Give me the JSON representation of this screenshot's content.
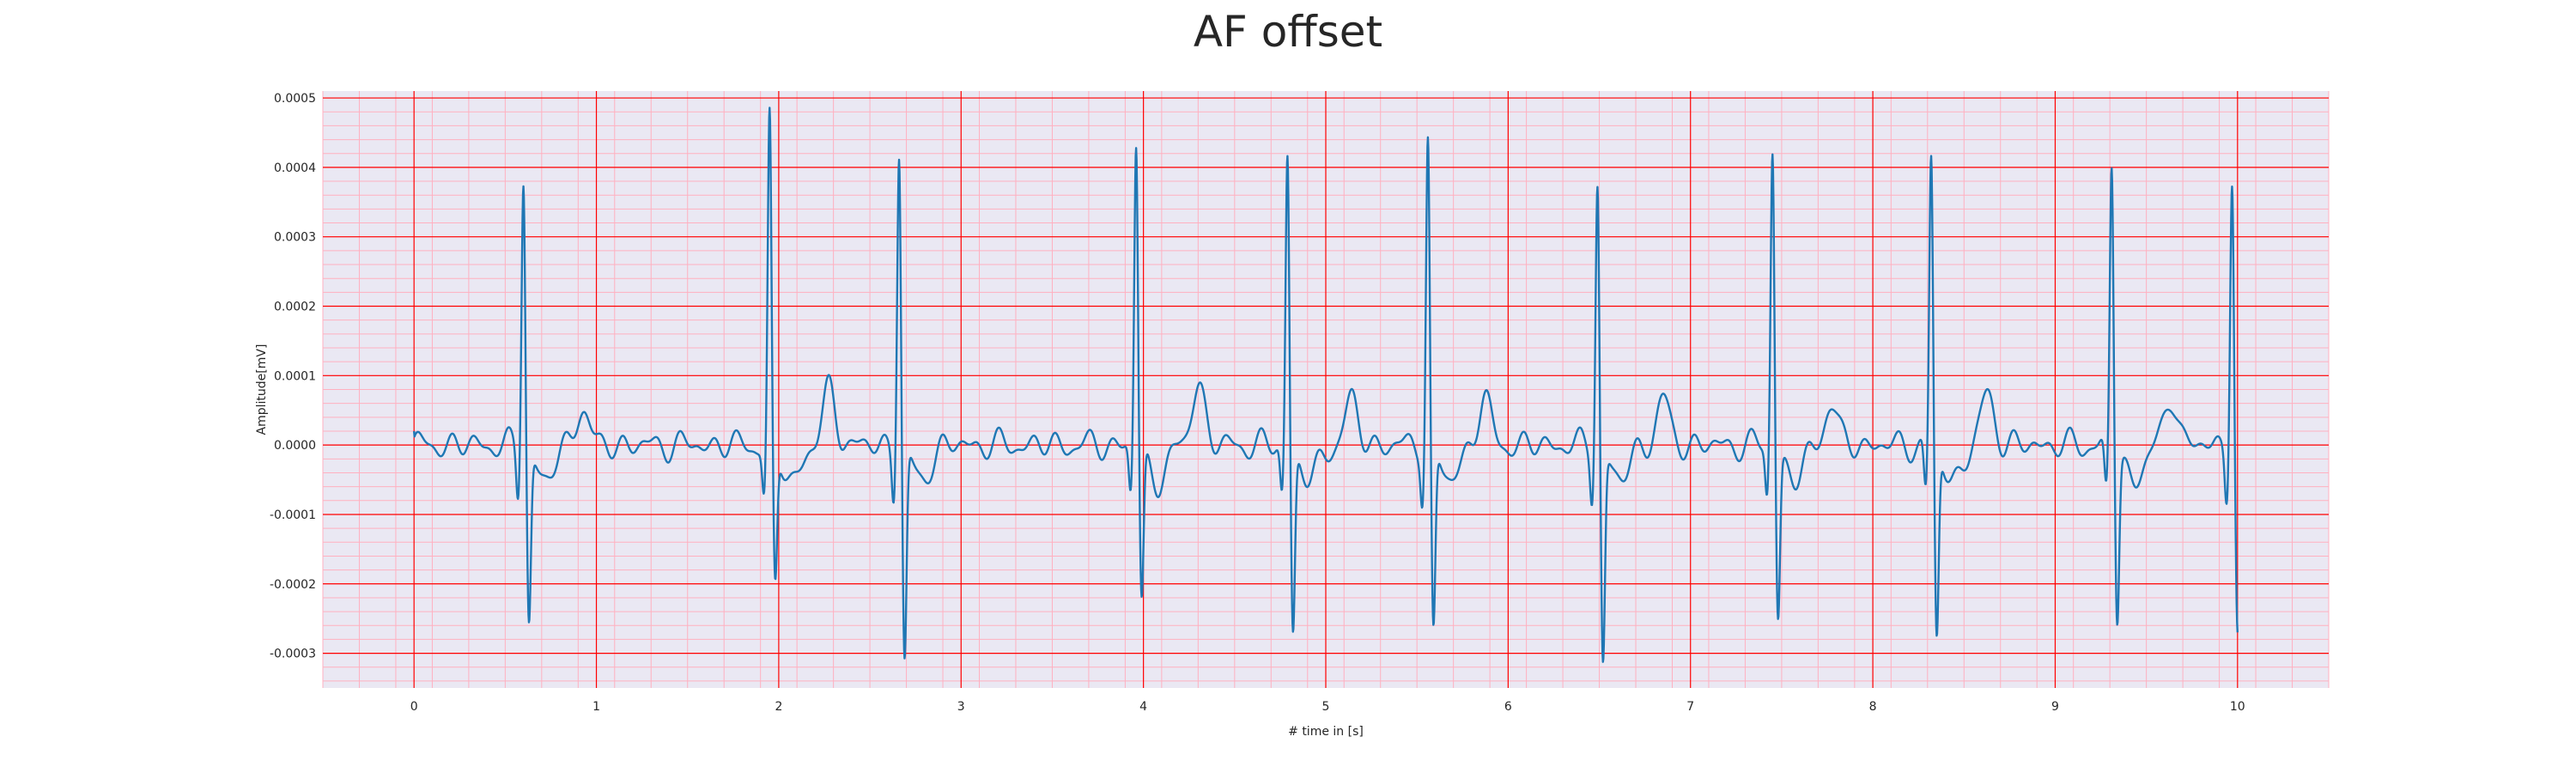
{
  "chart_data": {
    "type": "line",
    "title": "AF offset",
    "xlabel": "# time in [s]",
    "ylabel": "Amplitude[mV]",
    "xlim": [
      -0.5,
      10.5
    ],
    "ylim": [
      -0.00035,
      0.00051
    ],
    "x_ticks": [
      0,
      1,
      2,
      3,
      4,
      5,
      6,
      7,
      8,
      9,
      10
    ],
    "x_tick_labels": [
      "0",
      "1",
      "2",
      "3",
      "4",
      "5",
      "6",
      "7",
      "8",
      "9",
      "10"
    ],
    "y_ticks": [
      -0.0003,
      -0.0002,
      -0.0001,
      0,
      0.0001,
      0.0002,
      0.0003,
      0.0004,
      0.0005
    ],
    "y_tick_labels": [
      "-0.0003",
      "-0.0002",
      "-0.0001",
      "0.0000",
      "0.0001",
      "0.0002",
      "0.0003",
      "0.0004",
      "0.0005"
    ],
    "grid": true,
    "background_color": "#eae8f3",
    "major_grid_color": "#ff0000",
    "minor_grid_color": "#ffb0c0",
    "series": [
      {
        "color": "#1f77b4",
        "beats": [
          {
            "t": 0.6,
            "r": 0.000395,
            "s": -0.00025
          },
          {
            "t": 1.95,
            "r": 0.000475,
            "s": -0.0002
          },
          {
            "t": 2.66,
            "r": 0.000435,
            "s": -0.00031
          },
          {
            "t": 3.96,
            "r": 0.00044,
            "s": -0.00022
          },
          {
            "t": 4.79,
            "r": 0.000428,
            "s": -0.000265
          },
          {
            "t": 5.56,
            "r": 0.00045,
            "s": -0.00027
          },
          {
            "t": 6.49,
            "r": 0.00039,
            "s": -0.00031
          },
          {
            "t": 7.45,
            "r": 0.000435,
            "s": -0.00024
          },
          {
            "t": 8.32,
            "r": 0.00042,
            "s": -0.000275
          },
          {
            "t": 9.31,
            "r": 0.000412,
            "s": -0.00024
          },
          {
            "t": 9.97,
            "r": 0.0004,
            "s": -0.00027
          }
        ],
        "t_waves": [
          {
            "t": 0.92,
            "a": 5.5e-05
          },
          {
            "t": 2.28,
            "a": 8e-05
          },
          {
            "t": 4.3,
            "a": 9e-05
          },
          {
            "t": 5.14,
            "a": 6.5e-05
          },
          {
            "t": 5.87,
            "a": 6.5e-05
          },
          {
            "t": 6.85,
            "a": 6.5e-05
          },
          {
            "t": 7.77,
            "a": 6e-05
          },
          {
            "t": 8.63,
            "a": 7.5e-05
          },
          {
            "t": 9.64,
            "a": 7e-05
          }
        ],
        "start": {
          "t": 0.0,
          "v": 2e-05
        },
        "end": {
          "t": 10.0,
          "v": -0.00027
        }
      }
    ]
  }
}
